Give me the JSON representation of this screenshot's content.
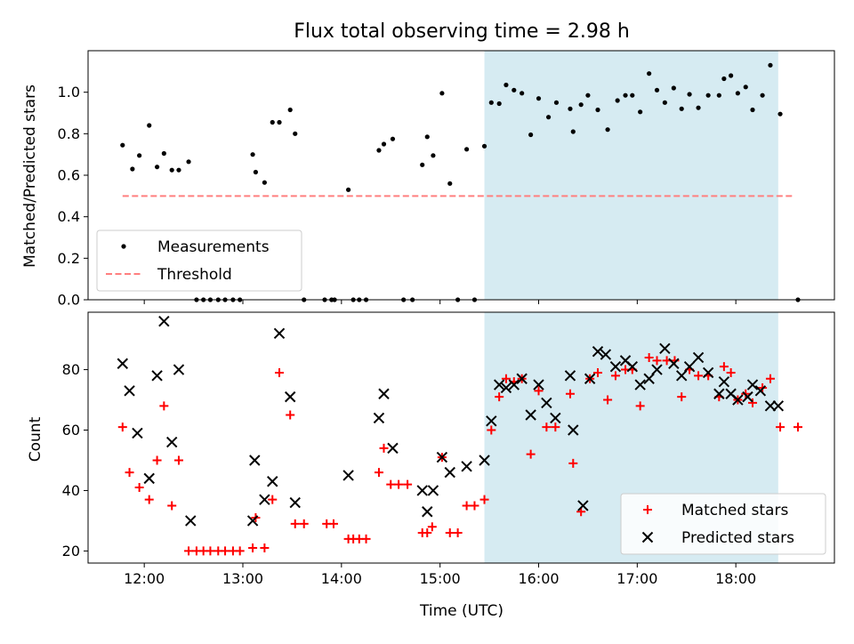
{
  "title": "Flux total observing time = 2.98 h",
  "shade": {
    "start": 15.45,
    "end": 18.43,
    "color": "#add8e6"
  },
  "xticks": [
    {
      "v": 12,
      "label": "12:00"
    },
    {
      "v": 13,
      "label": "13:00"
    },
    {
      "v": 14,
      "label": "14:00"
    },
    {
      "v": 15,
      "label": "15:00"
    },
    {
      "v": 16,
      "label": "16:00"
    },
    {
      "v": 17,
      "label": "17:00"
    },
    {
      "v": 18,
      "label": "18:00"
    }
  ],
  "xlabel": "Time (UTC)",
  "chart_data": [
    {
      "type": "scatter",
      "ylabel": "Matched/Predicted stars",
      "xlim": [
        11.43,
        19.0
      ],
      "ylim": [
        0,
        1.2
      ],
      "yticks": [
        "0.0",
        "0.2",
        "0.4",
        "0.6",
        "0.8",
        "1.0"
      ],
      "threshold": {
        "name": "Threshold",
        "y": 0.5,
        "x0": 11.78,
        "x1": 18.58,
        "color": "#ff7f7f"
      },
      "legend": {
        "location": "lower-left",
        "entries": [
          "Measurements",
          "Threshold"
        ]
      },
      "series": [
        {
          "name": "Measurements",
          "color": "#000000",
          "points": [
            [
              11.78,
              0.745
            ],
            [
              11.88,
              0.63
            ],
            [
              11.95,
              0.695
            ],
            [
              12.05,
              0.84
            ],
            [
              12.13,
              0.64
            ],
            [
              12.2,
              0.705
            ],
            [
              12.28,
              0.625
            ],
            [
              12.35,
              0.625
            ],
            [
              12.45,
              0.665
            ],
            [
              12.53,
              0.0
            ],
            [
              12.6,
              0.0
            ],
            [
              12.67,
              0.0
            ],
            [
              12.75,
              0.0
            ],
            [
              12.82,
              0.0
            ],
            [
              12.9,
              0.0
            ],
            [
              12.97,
              0.0
            ],
            [
              13.1,
              0.7
            ],
            [
              13.13,
              0.615
            ],
            [
              13.22,
              0.565
            ],
            [
              13.3,
              0.855
            ],
            [
              13.37,
              0.855
            ],
            [
              13.48,
              0.915
            ],
            [
              13.53,
              0.8
            ],
            [
              13.62,
              0.0
            ],
            [
              13.83,
              0.0
            ],
            [
              13.9,
              0.0
            ],
            [
              13.93,
              0.0
            ],
            [
              14.07,
              0.53
            ],
            [
              14.12,
              0.0
            ],
            [
              14.18,
              0.0
            ],
            [
              14.25,
              0.0
            ],
            [
              14.38,
              0.72
            ],
            [
              14.43,
              0.75
            ],
            [
              14.52,
              0.775
            ],
            [
              14.63,
              0.0
            ],
            [
              14.72,
              0.0
            ],
            [
              14.82,
              0.65
            ],
            [
              14.87,
              0.785
            ],
            [
              14.93,
              0.695
            ],
            [
              15.02,
              0.995
            ],
            [
              15.1,
              0.56
            ],
            [
              15.18,
              0.0
            ],
            [
              15.27,
              0.725
            ],
            [
              15.35,
              0.0
            ],
            [
              15.45,
              0.74
            ],
            [
              15.52,
              0.95
            ],
            [
              15.6,
              0.945
            ],
            [
              15.67,
              1.035
            ],
            [
              15.75,
              1.01
            ],
            [
              15.83,
              0.995
            ],
            [
              15.92,
              0.795
            ],
            [
              16.0,
              0.97
            ],
            [
              16.1,
              0.88
            ],
            [
              16.18,
              0.95
            ],
            [
              16.32,
              0.92
            ],
            [
              16.35,
              0.81
            ],
            [
              16.43,
              0.94
            ],
            [
              16.5,
              0.985
            ],
            [
              16.6,
              0.915
            ],
            [
              16.7,
              0.82
            ],
            [
              16.8,
              0.96
            ],
            [
              16.88,
              0.985
            ],
            [
              16.95,
              0.985
            ],
            [
              17.03,
              0.905
            ],
            [
              17.12,
              1.09
            ],
            [
              17.2,
              1.01
            ],
            [
              17.28,
              0.95
            ],
            [
              17.37,
              1.02
            ],
            [
              17.45,
              0.92
            ],
            [
              17.53,
              0.99
            ],
            [
              17.62,
              0.925
            ],
            [
              17.72,
              0.985
            ],
            [
              17.83,
              0.985
            ],
            [
              17.88,
              1.065
            ],
            [
              17.95,
              1.08
            ],
            [
              18.02,
              0.995
            ],
            [
              18.1,
              1.025
            ],
            [
              18.17,
              0.915
            ],
            [
              18.27,
              0.985
            ],
            [
              18.35,
              1.13
            ],
            [
              18.45,
              0.895
            ],
            [
              18.63,
              0.0
            ]
          ]
        }
      ]
    },
    {
      "type": "scatter",
      "ylabel": "Count",
      "xlim": [
        11.43,
        19.0
      ],
      "ylim": [
        16,
        99
      ],
      "yticks": [
        "20",
        "40",
        "60",
        "80"
      ],
      "legend": {
        "location": "lower-right",
        "entries": [
          "Matched stars",
          "Predicted stars"
        ]
      },
      "series": [
        {
          "name": "Matched stars",
          "marker": "plus",
          "color": "#ff0000",
          "points": [
            [
              11.78,
              61
            ],
            [
              11.85,
              46
            ],
            [
              11.95,
              41
            ],
            [
              12.05,
              37
            ],
            [
              12.13,
              50
            ],
            [
              12.2,
              68
            ],
            [
              12.28,
              35
            ],
            [
              12.35,
              50
            ],
            [
              12.45,
              20
            ],
            [
              12.53,
              20
            ],
            [
              12.6,
              20
            ],
            [
              12.67,
              20
            ],
            [
              12.75,
              20
            ],
            [
              12.82,
              20
            ],
            [
              12.9,
              20
            ],
            [
              12.97,
              20
            ],
            [
              13.1,
              21
            ],
            [
              13.13,
              31
            ],
            [
              13.22,
              21
            ],
            [
              13.3,
              37
            ],
            [
              13.37,
              79
            ],
            [
              13.48,
              65
            ],
            [
              13.53,
              29
            ],
            [
              13.62,
              29
            ],
            [
              13.85,
              29
            ],
            [
              13.92,
              29
            ],
            [
              14.07,
              24
            ],
            [
              14.12,
              24
            ],
            [
              14.18,
              24
            ],
            [
              14.25,
              24
            ],
            [
              14.38,
              46
            ],
            [
              14.43,
              54
            ],
            [
              14.5,
              42
            ],
            [
              14.58,
              42
            ],
            [
              14.67,
              42
            ],
            [
              14.82,
              26
            ],
            [
              14.87,
              26
            ],
            [
              14.92,
              28
            ],
            [
              15.02,
              51
            ],
            [
              15.1,
              26
            ],
            [
              15.18,
              26
            ],
            [
              15.27,
              35
            ],
            [
              15.35,
              35
            ],
            [
              15.45,
              37
            ],
            [
              15.52,
              60
            ],
            [
              15.6,
              71
            ],
            [
              15.67,
              77
            ],
            [
              15.75,
              76
            ],
            [
              15.83,
              77
            ],
            [
              15.92,
              52
            ],
            [
              16.0,
              73
            ],
            [
              16.08,
              61
            ],
            [
              16.17,
              61
            ],
            [
              16.32,
              72
            ],
            [
              16.35,
              49
            ],
            [
              16.43,
              33
            ],
            [
              16.52,
              77
            ],
            [
              16.6,
              79
            ],
            [
              16.7,
              70
            ],
            [
              16.78,
              78
            ],
            [
              16.88,
              80
            ],
            [
              16.95,
              80
            ],
            [
              17.03,
              68
            ],
            [
              17.12,
              84
            ],
            [
              17.2,
              83
            ],
            [
              17.3,
              83
            ],
            [
              17.38,
              83
            ],
            [
              17.45,
              71
            ],
            [
              17.53,
              80
            ],
            [
              17.62,
              78
            ],
            [
              17.72,
              78
            ],
            [
              17.83,
              71
            ],
            [
              17.88,
              81
            ],
            [
              17.95,
              79
            ],
            [
              18.02,
              70
            ],
            [
              18.1,
              72
            ],
            [
              18.17,
              69
            ],
            [
              18.27,
              74
            ],
            [
              18.35,
              77
            ],
            [
              18.45,
              61
            ],
            [
              18.63,
              61
            ]
          ]
        },
        {
          "name": "Predicted stars",
          "marker": "x",
          "color": "#000000",
          "points": [
            [
              11.78,
              82
            ],
            [
              11.85,
              73
            ],
            [
              11.93,
              59
            ],
            [
              12.05,
              44
            ],
            [
              12.13,
              78
            ],
            [
              12.2,
              96
            ],
            [
              12.28,
              56
            ],
            [
              12.35,
              80
            ],
            [
              12.47,
              30
            ],
            [
              13.1,
              30
            ],
            [
              13.12,
              50
            ],
            [
              13.22,
              37
            ],
            [
              13.3,
              43
            ],
            [
              13.37,
              92
            ],
            [
              13.48,
              71
            ],
            [
              13.53,
              36
            ],
            [
              14.07,
              45
            ],
            [
              14.38,
              64
            ],
            [
              14.43,
              72
            ],
            [
              14.52,
              54
            ],
            [
              14.82,
              40
            ],
            [
              14.87,
              33
            ],
            [
              14.93,
              40
            ],
            [
              15.02,
              51
            ],
            [
              15.1,
              46
            ],
            [
              15.27,
              48
            ],
            [
              15.45,
              50
            ],
            [
              15.52,
              63
            ],
            [
              15.6,
              75
            ],
            [
              15.67,
              74
            ],
            [
              15.75,
              75
            ],
            [
              15.83,
              77
            ],
            [
              15.92,
              65
            ],
            [
              16.0,
              75
            ],
            [
              16.08,
              69
            ],
            [
              16.17,
              64
            ],
            [
              16.32,
              78
            ],
            [
              16.35,
              60
            ],
            [
              16.45,
              35
            ],
            [
              16.52,
              77
            ],
            [
              16.6,
              86
            ],
            [
              16.68,
              85
            ],
            [
              16.78,
              81
            ],
            [
              16.88,
              83
            ],
            [
              16.95,
              81
            ],
            [
              17.03,
              75
            ],
            [
              17.12,
              77
            ],
            [
              17.2,
              80
            ],
            [
              17.28,
              87
            ],
            [
              17.37,
              82
            ],
            [
              17.45,
              78
            ],
            [
              17.53,
              81
            ],
            [
              17.62,
              84
            ],
            [
              17.72,
              79
            ],
            [
              17.83,
              72
            ],
            [
              17.88,
              76
            ],
            [
              17.95,
              72
            ],
            [
              18.02,
              70
            ],
            [
              18.12,
              71
            ],
            [
              18.17,
              75
            ],
            [
              18.25,
              73
            ],
            [
              18.35,
              68
            ],
            [
              18.43,
              68
            ]
          ]
        }
      ]
    }
  ]
}
